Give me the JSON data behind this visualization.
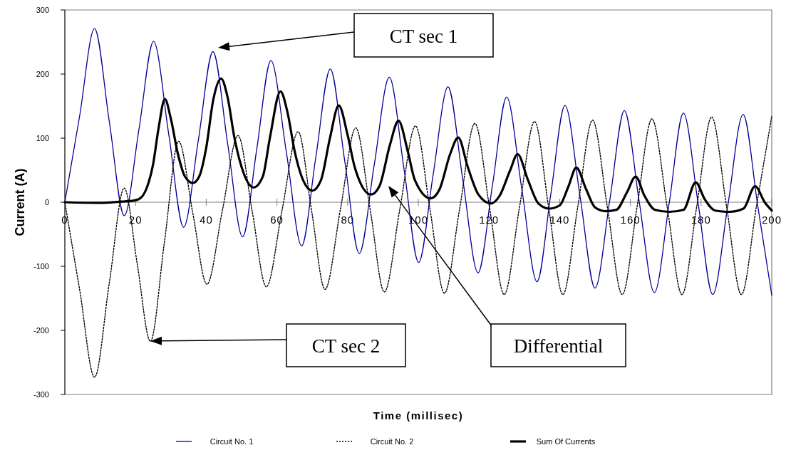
{
  "chart_data": {
    "type": "line",
    "xlabel": "Time (millisec)",
    "ylabel": "Current (A)",
    "xlim": [
      0,
      200
    ],
    "xticks": [
      0,
      20,
      40,
      60,
      80,
      100,
      120,
      140,
      160,
      180,
      200
    ],
    "ylim": [
      -300,
      300
    ],
    "yticks": [
      -300,
      -200,
      -100,
      0,
      100,
      200,
      300
    ],
    "grid": false,
    "legend": "bottom",
    "marker": "none",
    "annotations": [
      "CT sec 1",
      "CT sec 2",
      "Differential"
    ],
    "series": [
      {
        "name": "Circuit No. 1",
        "color": "#000099",
        "line_style": "solid",
        "x": [
          0,
          4.2,
          8.4,
          12.6,
          16.8,
          21,
          25.1,
          29.4,
          33.6,
          37.8,
          41.9,
          46.1,
          50.3,
          54.3,
          58.3,
          62.7,
          67,
          71,
          75.1,
          79.2,
          83.3,
          87.5,
          91.8,
          96,
          100.1,
          104.2,
          108.4,
          112.6,
          116.9,
          121,
          125,
          129.3,
          133.6,
          137.5,
          141.5,
          145.8,
          150,
          154.2,
          158.3,
          162.5,
          166.8,
          171,
          175,
          179.2,
          183.3,
          187.6,
          191.9,
          196,
          200
        ],
        "values": [
          0,
          135,
          271,
          125,
          -21,
          115,
          251,
          106,
          -39,
          98,
          235,
          90,
          -54,
          83,
          221,
          77,
          -68,
          70,
          208,
          64,
          -80,
          57,
          195,
          50,
          -94,
          43,
          180,
          35,
          -110,
          27,
          164,
          20,
          -124,
          13,
          151,
          8,
          -134,
          4,
          143,
          1,
          -141,
          -1,
          139,
          -3,
          -144,
          -4,
          137,
          -4,
          -145
        ]
      },
      {
        "name": "Circuit No. 2",
        "color": "#000000",
        "line_style": "dotted",
        "x": [
          0,
          4.2,
          8.4,
          12.6,
          16.8,
          20.5,
          24.2,
          28.2,
          32.2,
          36.2,
          40.2,
          44.6,
          49,
          53,
          57,
          61.5,
          66,
          69.8,
          73.6,
          78,
          82.3,
          86.4,
          90.4,
          94.8,
          99.2,
          103.3,
          107.4,
          111.7,
          116,
          120.2,
          124.3,
          128.6,
          132.9,
          136.9,
          140.9,
          145.1,
          149.3,
          153.5,
          157.7,
          161.9,
          166.1,
          170.4,
          174.6,
          178.8,
          183,
          187.2,
          191.4,
          195.7,
          200
        ],
        "values": [
          0,
          -137,
          -273,
          -125,
          22,
          -97,
          -217,
          -61,
          95,
          -17,
          -128,
          -12,
          104,
          -14,
          -132,
          -11,
          110,
          -13,
          -136,
          -10,
          116,
          -12,
          -140,
          -10,
          119,
          -11,
          -142,
          -10,
          123,
          -10,
          -144,
          -9,
          126,
          -9,
          -144,
          -8,
          128,
          -8,
          -144,
          -7,
          130,
          -7,
          -144,
          -6,
          133,
          -6,
          -144,
          -5,
          134
        ]
      },
      {
        "name": "Sum Of Currents",
        "color": "#000000",
        "line_style": "solid",
        "x": [
          0,
          10,
          16,
          19,
          21,
          23,
          25,
          26.5,
          28.3,
          30,
          32,
          34,
          36.2,
          38,
          40,
          42,
          44.2,
          46,
          48,
          50,
          53.4,
          56,
          58,
          61,
          63,
          65,
          67,
          70,
          72.5,
          75,
          77.5,
          80,
          82,
          86.6,
          89,
          92,
          94.4,
          97,
          99,
          103.5,
          106,
          109,
          111.3,
          114,
          117,
          120.5,
          123,
          126,
          128.1,
          131,
          134,
          137,
          140,
          142.5,
          144.7,
          147.5,
          150,
          153,
          156,
          159,
          161.5,
          164,
          167,
          171,
          175,
          178.5,
          181,
          184,
          188,
          192,
          195.3,
          198,
          200
        ],
        "values": [
          0,
          -1,
          1,
          2,
          5,
          20,
          60,
          115,
          161,
          130,
          75,
          40,
          30,
          40,
          85,
          160,
          193,
          165,
          100,
          55,
          23,
          40,
          100,
          173,
          140,
          80,
          40,
          18,
          35,
          100,
          151,
          105,
          55,
          12,
          25,
          90,
          127,
          80,
          35,
          6,
          20,
          75,
          101,
          55,
          12,
          -2,
          10,
          50,
          75,
          35,
          -2,
          -10,
          -5,
          25,
          54,
          20,
          -8,
          -14,
          -12,
          15,
          40,
          10,
          -12,
          -15,
          -12,
          31,
          5,
          -13,
          -15,
          -10,
          25,
          0,
          -13
        ]
      }
    ]
  }
}
